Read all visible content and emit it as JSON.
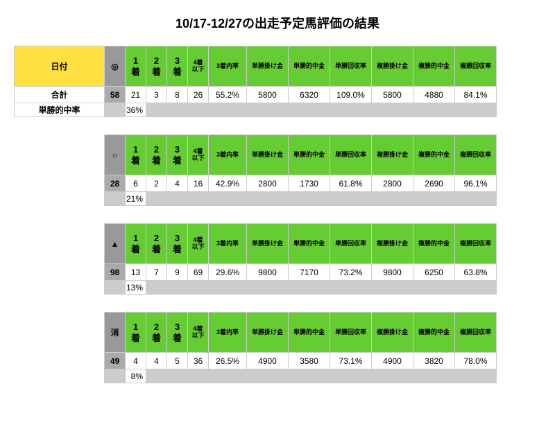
{
  "title": "10/17-12/27の出走予定馬評価の結果",
  "columns": {
    "date": "日付",
    "p1": "1\n着",
    "p2": "2\n着",
    "p3": "3\n着",
    "below": "4着\n以下",
    "top3rate": "3着内率",
    "win_bet": "単勝掛け金",
    "win_hit": "単勝的中金",
    "win_rec": "単勝回収率",
    "plc_bet": "複勝掛け金",
    "plc_hit": "複勝的中金",
    "plc_rec": "複勝回収率"
  },
  "rowlabels": {
    "sum": "合計",
    "win_hit_rate": "単勝的中率"
  },
  "blocks": [
    {
      "mark": "◎",
      "has_date_col": true,
      "count": "58",
      "p1": "21",
      "p2": "3",
      "p3": "8",
      "below": "26",
      "top3rate": "55.2%",
      "win_bet": "5800",
      "win_hit": "6320",
      "win_rec": "109.0%",
      "plc_bet": "5800",
      "plc_hit": "4880",
      "plc_rec": "84.1%",
      "hit_rate": "36%"
    },
    {
      "mark": "○",
      "has_date_col": false,
      "count": "28",
      "p1": "6",
      "p2": "2",
      "p3": "4",
      "below": "16",
      "top3rate": "42.9%",
      "win_bet": "2800",
      "win_hit": "1730",
      "win_rec": "61.8%",
      "plc_bet": "2800",
      "plc_hit": "2690",
      "plc_rec": "96.1%",
      "hit_rate": "21%"
    },
    {
      "mark": "▲",
      "has_date_col": false,
      "count": "98",
      "p1": "13",
      "p2": "7",
      "p3": "9",
      "below": "69",
      "top3rate": "29.6%",
      "win_bet": "9800",
      "win_hit": "7170",
      "win_rec": "73.2%",
      "plc_bet": "9800",
      "plc_hit": "6250",
      "plc_rec": "63.8%",
      "hit_rate": "13%"
    },
    {
      "mark": "消",
      "has_date_col": false,
      "count": "49",
      "p1": "4",
      "p2": "4",
      "p3": "5",
      "below": "36",
      "top3rate": "26.5%",
      "win_bet": "4900",
      "win_hit": "3580",
      "win_rec": "73.1%",
      "plc_bet": "4900",
      "plc_hit": "3820",
      "plc_rec": "78.0%",
      "hit_rate": "8%"
    }
  ],
  "style": {
    "header_green": "#66cc33",
    "header_date_bg": "#ffe040",
    "mark_header_bg": "#999999",
    "mark_cell_bg": "#aaaaaa",
    "hit_gray": "#cccccc",
    "border": "#cccccc",
    "background": "#ffffff"
  }
}
